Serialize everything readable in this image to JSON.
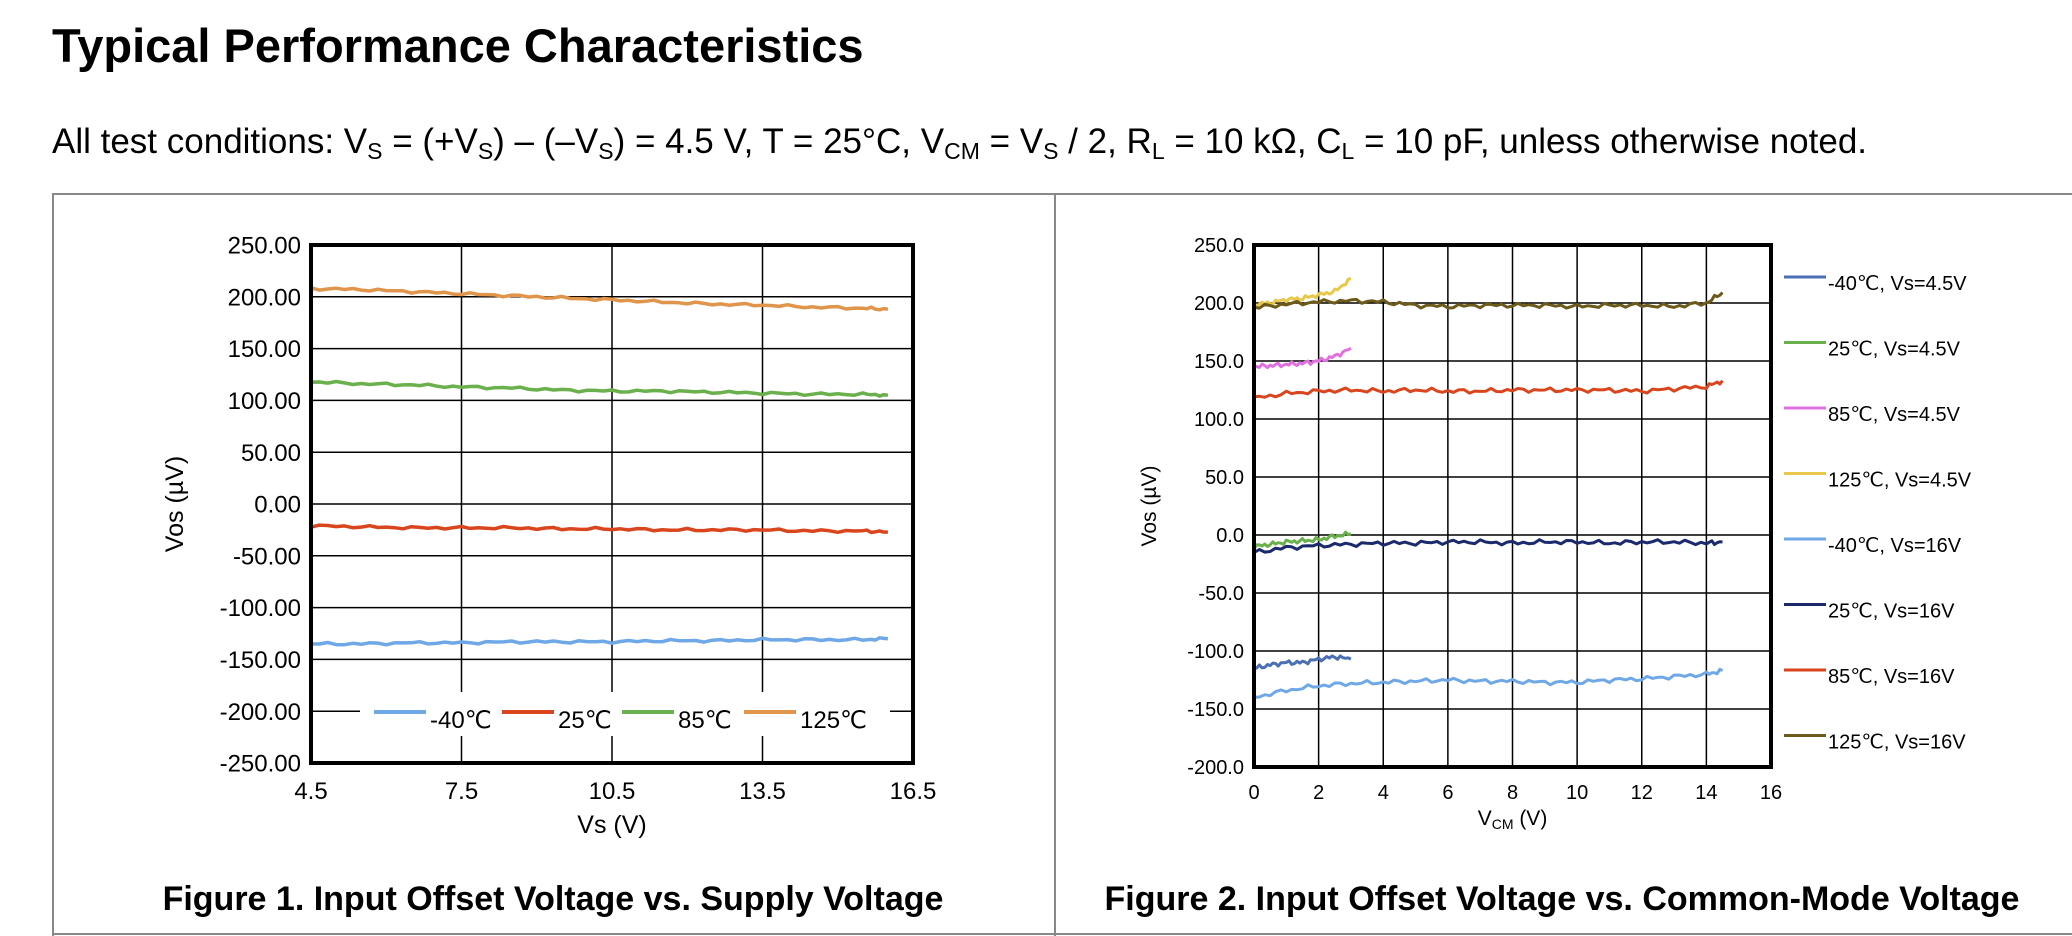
{
  "page": {
    "title": "Typical Performance Characteristics",
    "conditions": {
      "p1": "All test conditions: V",
      "s1": "S",
      "p2": " = (+V",
      "s2": "S",
      "p3": ") – (–V",
      "s3": "S",
      "p4": ") = 4.5 V, T = 25°C, V",
      "s4": "CM",
      "p5": " = V",
      "s5": "S",
      "p6": " / 2, R",
      "s6": "L",
      "p7": " = 10 kΩ, C",
      "s7": "L",
      "p8": " = 10 pF, unless otherwise noted."
    },
    "fig1_caption": "Figure 1. Input Offset Voltage vs. Supply Voltage",
    "fig2_caption": "Figure 2. Input Offset Voltage vs. Common-Mode Voltage"
  },
  "chart_data": [
    {
      "type": "line",
      "xlabel": "Vs (V)",
      "ylabel": "Vos (µV)",
      "xlim": [
        4.5,
        16.5
      ],
      "ylim": [
        -250,
        250
      ],
      "x_ticks": [
        4.5,
        7.5,
        10.5,
        13.5,
        16.5
      ],
      "x_tick_labels": [
        "4.5",
        "7.5",
        "10.5",
        "13.5",
        "16.5"
      ],
      "y_ticks": [
        250,
        200,
        150,
        100,
        50,
        0,
        -50,
        -100,
        -150,
        -200,
        -250
      ],
      "y_tick_labels": [
        "250.00",
        "200.00",
        "150.00",
        "100.00",
        "50.00",
        "0.00",
        "-50.00",
        "-100.00",
        "-150.00",
        "-200.00",
        "-250.00"
      ],
      "grid": true,
      "legend_position": "bottom-inside",
      "series": [
        {
          "name": "-40℃",
          "color": "#6fa8e6",
          "x": [
            4.5,
            5.5,
            6.5,
            7.5,
            8.5,
            9.5,
            10.5,
            11.5,
            12.5,
            13.5,
            14.5,
            15.5,
            16.0
          ],
          "y": [
            -135,
            -135,
            -134,
            -134,
            -133,
            -133,
            -133,
            -132,
            -132,
            -131,
            -131,
            -131,
            -130
          ]
        },
        {
          "name": "25℃",
          "color": "#d9461e",
          "x": [
            4.5,
            5.5,
            6.5,
            7.5,
            8.5,
            9.5,
            10.5,
            11.5,
            12.5,
            13.5,
            14.5,
            15.5,
            16.0
          ],
          "y": [
            -21,
            -22,
            -23,
            -23,
            -23,
            -24,
            -24,
            -25,
            -25,
            -25,
            -26,
            -26,
            -27
          ]
        },
        {
          "name": "85℃",
          "color": "#6ab04c",
          "x": [
            4.5,
            5.5,
            6.5,
            7.5,
            8.5,
            9.5,
            10.5,
            11.5,
            12.5,
            13.5,
            14.5,
            15.5,
            16.0
          ],
          "y": [
            118,
            116,
            115,
            113,
            112,
            110,
            109,
            109,
            108,
            107,
            106,
            106,
            105
          ]
        },
        {
          "name": "125℃",
          "color": "#e0954a",
          "x": [
            4.5,
            5.5,
            6.5,
            7.5,
            8.5,
            9.5,
            10.5,
            11.5,
            12.5,
            13.5,
            14.5,
            15.5,
            16.0
          ],
          "y": [
            208,
            207,
            205,
            203,
            201,
            199,
            197,
            195,
            193,
            192,
            190,
            189,
            188
          ]
        }
      ]
    },
    {
      "type": "line",
      "xlabel": "VCM (V)",
      "ylabel": "Vos (µV)",
      "xlim": [
        0,
        16
      ],
      "ylim": [
        -200,
        250
      ],
      "x_ticks": [
        0,
        2,
        4,
        6,
        8,
        10,
        12,
        14,
        16
      ],
      "x_tick_labels": [
        "0",
        "2",
        "4",
        "6",
        "8",
        "10",
        "12",
        "14",
        "16"
      ],
      "y_ticks": [
        250,
        200,
        150,
        100,
        50,
        0,
        -50,
        -100,
        -150,
        -200
      ],
      "y_tick_labels": [
        "250.0",
        "200.0",
        "150.0",
        "100.0",
        "50.0",
        "0.0",
        "-50.0",
        "-100.0",
        "-150.0",
        "-200.0"
      ],
      "grid": true,
      "legend_position": "right",
      "series": [
        {
          "name": "-40℃, Vs=4.5V",
          "color": "#4a6fb5",
          "x": [
            0,
            0.5,
            1,
            1.5,
            2,
            2.5,
            3
          ],
          "y": [
            -115,
            -112,
            -110,
            -110,
            -107,
            -105,
            -107
          ]
        },
        {
          "name": "25℃, Vs=4.5V",
          "color": "#6ab04c",
          "x": [
            0,
            0.5,
            1,
            1.5,
            2,
            2.5,
            3
          ],
          "y": [
            -10,
            -8,
            -6,
            -5,
            -4,
            -1,
            1
          ]
        },
        {
          "name": "85℃, Vs=4.5V",
          "color": "#e070e0",
          "x": [
            0,
            0.5,
            1,
            1.5,
            2,
            2.5,
            3
          ],
          "y": [
            145,
            146,
            147,
            148,
            150,
            154,
            161
          ]
        },
        {
          "name": "125℃, Vs=4.5V",
          "color": "#e8c84a",
          "x": [
            0,
            0.5,
            1,
            1.5,
            2,
            2.5,
            3
          ],
          "y": [
            199,
            200,
            203,
            204,
            207,
            210,
            221
          ]
        },
        {
          "name": "-40℃, Vs=16V",
          "color": "#6fa8e6",
          "x": [
            0,
            1,
            2,
            3,
            4,
            5,
            6,
            7,
            8,
            9,
            10,
            11,
            12,
            13,
            14,
            14.5
          ],
          "y": [
            -140,
            -134,
            -130,
            -128,
            -127,
            -126,
            -125,
            -126,
            -126,
            -127,
            -127,
            -125,
            -124,
            -122,
            -120,
            -117
          ]
        },
        {
          "name": "25℃, Vs=16V",
          "color": "#1a2a6c",
          "x": [
            0,
            1,
            2,
            3,
            4,
            5,
            6,
            7,
            8,
            9,
            10,
            11,
            12,
            13,
            14,
            14.5
          ],
          "y": [
            -15,
            -11,
            -9,
            -8,
            -7,
            -7,
            -6,
            -6,
            -7,
            -6,
            -6,
            -7,
            -6,
            -6,
            -7,
            -6
          ]
        },
        {
          "name": "85℃, Vs=16V",
          "color": "#d9461e",
          "x": [
            0,
            1,
            2,
            3,
            4,
            5,
            6,
            7,
            8,
            9,
            10,
            11,
            12,
            13,
            14,
            14.5
          ],
          "y": [
            118,
            122,
            124,
            125,
            124,
            125,
            124,
            124,
            125,
            125,
            125,
            125,
            124,
            126,
            128,
            133
          ]
        },
        {
          "name": "125℃, Vs=16V",
          "color": "#6b5a1a",
          "x": [
            0,
            1,
            2,
            3,
            4,
            5,
            6,
            7,
            8,
            9,
            10,
            11,
            12,
            13,
            14,
            14.5
          ],
          "y": [
            196,
            199,
            201,
            202,
            201,
            198,
            197,
            198,
            198,
            198,
            197,
            198,
            198,
            197,
            200,
            209
          ]
        }
      ]
    }
  ]
}
